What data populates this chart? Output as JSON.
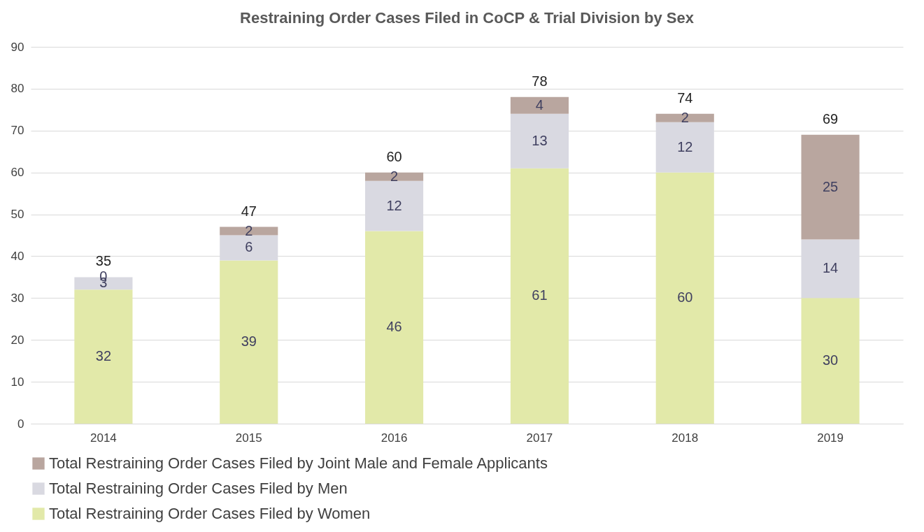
{
  "chart_data": {
    "type": "bar",
    "title": "Restraining Order Cases Filed in CoCP & Trial Division by Sex",
    "categories": [
      "2014",
      "2015",
      "2016",
      "2017",
      "2018",
      "2019"
    ],
    "stacked": true,
    "series": [
      {
        "name": "Total Restraining Order Cases Filed by Women",
        "color": "#e2e9a9",
        "values": [
          32,
          39,
          46,
          61,
          60,
          30
        ]
      },
      {
        "name": "Total Restraining Order Cases Filed by Men",
        "color": "#d9d9e1",
        "values": [
          3,
          6,
          12,
          13,
          12,
          14
        ]
      },
      {
        "name": "Total Restraining Order Cases Filed by Joint Male and Female Applicants",
        "color": "#b9a69f",
        "values": [
          0,
          2,
          2,
          4,
          2,
          25
        ]
      }
    ],
    "totals": [
      "35",
      "47",
      "60",
      "78",
      "74",
      "69"
    ],
    "data_labels": true,
    "ylim": [
      0,
      90
    ],
    "yticks": [
      0,
      10,
      20,
      30,
      40,
      50,
      60,
      70,
      80,
      90
    ],
    "grid": "y",
    "legend": "bottom"
  }
}
